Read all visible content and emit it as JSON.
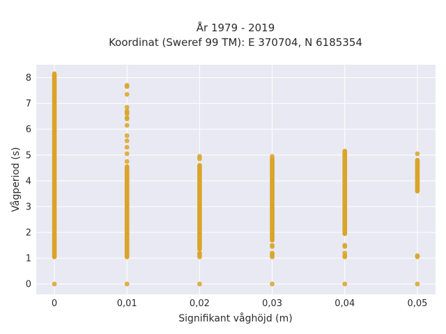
{
  "chart_data": {
    "type": "scatter",
    "title": "År 1979 - 2019",
    "subtitle": "Koordinat (Sweref 99 TM): E 370704, N 6185354",
    "xlabel": "Signifikant våghöjd (m)",
    "ylabel": "Vågperiod (s)",
    "xlim": [
      -0.0025,
      0.0525
    ],
    "ylim": [
      -0.4,
      8.5
    ],
    "x_ticks": [
      0,
      0.01,
      0.02,
      0.03,
      0.04,
      0.05
    ],
    "x_tick_labels": [
      "0",
      "0,01",
      "0,02",
      "0,03",
      "0,04",
      "0,05"
    ],
    "y_ticks": [
      0,
      1,
      2,
      3,
      4,
      5,
      6,
      7,
      8
    ],
    "y_tick_labels": [
      "0",
      "1",
      "2",
      "3",
      "4",
      "5",
      "6",
      "7",
      "8"
    ],
    "grid": true,
    "colors": {
      "background": "#e9e9f3",
      "grid": "#ffffff",
      "marker": "#d9a427"
    },
    "series": [
      {
        "color": "#d9a427",
        "columns": [
          {
            "x": 0,
            "ranges": [
              [
                1.05,
                8.15
              ]
            ],
            "points": [
              0
            ]
          },
          {
            "x": 0.01,
            "ranges": [
              [
                1.05,
                4.55
              ]
            ],
            "points": [
              0,
              4.75,
              5.05,
              5.3,
              5.55,
              5.75,
              6.15,
              6.4,
              6.45,
              6.6,
              6.65,
              6.7,
              6.85,
              7.35,
              7.65,
              7.7
            ]
          },
          {
            "x": 0.02,
            "ranges": [
              [
                1.35,
                4.6
              ]
            ],
            "points": [
              0,
              1.05,
              1.1,
              1.15,
              1.2,
              4.85,
              4.95
            ]
          },
          {
            "x": 0.03,
            "ranges": [
              [
                1.7,
                4.85
              ]
            ],
            "points": [
              0,
              1.05,
              1.1,
              1.15,
              1.2,
              1.45,
              1.5,
              4.95
            ]
          },
          {
            "x": 0.04,
            "ranges": [
              [
                1.95,
                5.15
              ]
            ],
            "points": [
              0,
              1.05,
              1.1,
              1.2,
              1.45,
              1.5
            ]
          },
          {
            "x": 0.05,
            "ranges": [
              [
                3.6,
                4.8
              ]
            ],
            "points": [
              0,
              1.05,
              1.1,
              5.05
            ]
          }
        ]
      }
    ]
  }
}
